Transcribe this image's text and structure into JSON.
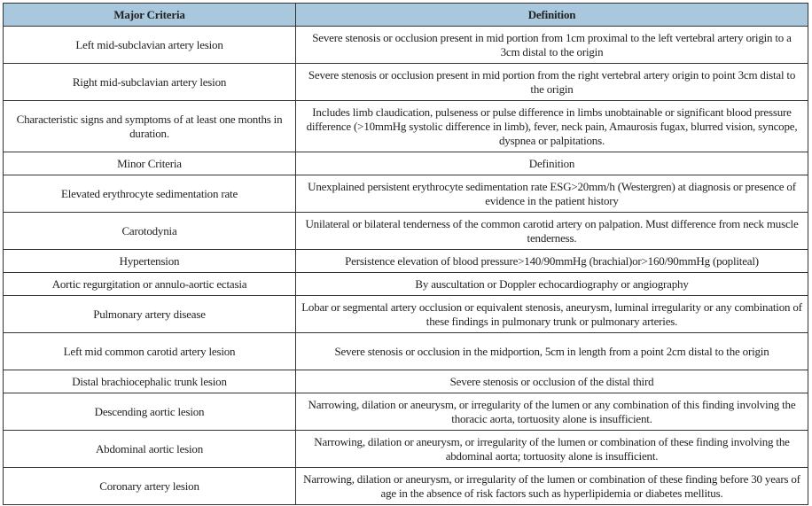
{
  "header": {
    "col1": "Major Criteria",
    "col2": "Definition"
  },
  "major_rows": [
    {
      "criterion": "Left mid-subclavian artery lesion",
      "definition": "Severe stenosis or occlusion present in mid portion from 1cm proximal to the left vertebral artery origin to a 3cm distal to the origin"
    },
    {
      "criterion": "Right mid-subclavian artery lesion",
      "definition": "Severe stenosis or occlusion present in mid portion from the right vertebral artery origin to point 3cm distal to the origin"
    },
    {
      "criterion": "Characteristic signs and symptoms of at least one months in duration.",
      "definition": "Includes limb claudication, pulseness or pulse difference in limbs unobtainable or significant blood pressure difference (>10mmHg systolic difference in limb), fever, neck pain, Amaurosis fugax, blurred vision, syncope, dyspnea or palpitations."
    }
  ],
  "minor_header": {
    "col1": "Minor Criteria",
    "col2": "Definition"
  },
  "minor_rows": [
    {
      "criterion": "Elevated erythrocyte sedimentation rate",
      "definition": "Unexplained persistent erythrocyte sedimentation rate ESG>20mm/h (Westergren) at diagnosis or presence of evidence in the patient history"
    },
    {
      "criterion": "Carotodynia",
      "definition": "Unilateral or bilateral tenderness of the common carotid artery on palpation. Must difference from neck muscle tenderness."
    },
    {
      "criterion": "Hypertension",
      "definition": "Persistence elevation of blood pressure>140/90mmHg (brachial)or>160/90mmHg (popliteal)"
    },
    {
      "criterion": "Aortic regurgitation or annulo-aortic ectasia",
      "definition": "By auscultation or Doppler echocardiography or angiography"
    },
    {
      "criterion": "Pulmonary artery disease",
      "definition": "Lobar or segmental artery occlusion or equivalent stenosis, aneurysm, luminal irregularity or any combination of these findings in pulmonary trunk or pulmonary arteries."
    },
    {
      "criterion": "Left mid common carotid artery lesion",
      "definition": "Severe stenosis or occlusion in the midportion, 5cm in length from a point 2cm distal to the origin"
    },
    {
      "criterion": "Distal brachiocephalic trunk lesion",
      "definition": "Severe stenosis or occlusion of the distal third"
    },
    {
      "criterion": "Descending aortic lesion",
      "definition": "Narrowing, dilation or aneurysm, or irregularity of the lumen or any combination of this finding involving the thoracic aorta, tortuosity alone is insufficient."
    },
    {
      "criterion": "Abdominal aortic lesion",
      "definition": "Narrowing, dilation or aneurysm, or irregularity of the lumen or combination of these finding involving the abdominal aorta; tortuosity alone is insufficient."
    },
    {
      "criterion": "Coronary artery lesion",
      "definition": "Narrowing, dilation or aneurysm, or irregularity of the lumen or combination of these finding before 30 years of age in the absence of risk factors such as hyperlipidemia or diabetes mellitus."
    }
  ],
  "colors": {
    "header_bg": "#a9c8de",
    "border": "#333333"
  }
}
